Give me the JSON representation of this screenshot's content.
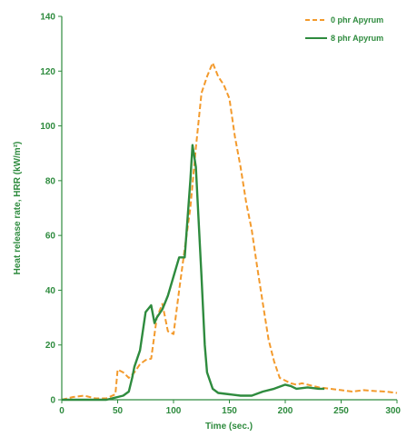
{
  "chart_data": {
    "type": "line",
    "xlabel": "Time (sec.)",
    "ylabel": "Heat release rate, HRR (kW/m²)",
    "xlim": [
      0,
      300
    ],
    "ylim": [
      0,
      140
    ],
    "xticks": [
      "0",
      "50",
      "100",
      "150",
      "200",
      "250",
      "300"
    ],
    "yticks": [
      "0",
      "20",
      "40",
      "60",
      "80",
      "100",
      "120",
      "140"
    ],
    "grid": false,
    "legend_position": "top-right",
    "axis_color": "#2e8b3e",
    "series": [
      {
        "name": "0 phr Apyrum",
        "color": "#f39a2c",
        "style": "dashed",
        "x": [
          0,
          10,
          20,
          30,
          40,
          48,
          50,
          55,
          60,
          65,
          70,
          75,
          80,
          85,
          90,
          95,
          100,
          105,
          110,
          115,
          120,
          125,
          130,
          135,
          140,
          145,
          150,
          155,
          160,
          165,
          170,
          175,
          180,
          185,
          190,
          195,
          200,
          205,
          210,
          215,
          220,
          225,
          230,
          240,
          250,
          260,
          270,
          280,
          290,
          300
        ],
        "y": [
          0,
          1,
          1.5,
          0.5,
          0.5,
          2,
          11,
          10,
          8,
          10,
          13,
          14.5,
          15,
          30,
          35,
          25,
          24,
          40,
          55,
          70,
          92,
          112,
          118,
          123,
          118,
          115,
          110,
          96,
          85,
          72,
          62,
          48,
          35,
          22,
          14,
          8,
          7,
          6,
          5.5,
          6,
          5.5,
          5,
          4.5,
          4,
          3.5,
          3,
          3.5,
          3.2,
          3,
          2.5
        ]
      },
      {
        "name": "8 phr Apyrum",
        "color": "#2e8b3e",
        "style": "solid",
        "x": [
          0,
          20,
          40,
          45,
          50,
          55,
          60,
          63,
          65,
          70,
          75,
          80,
          83,
          85,
          90,
          95,
          100,
          105,
          110,
          115,
          117,
          120,
          125,
          128,
          130,
          135,
          140,
          150,
          160,
          170,
          180,
          190,
          200,
          205,
          210,
          220,
          230,
          235
        ],
        "y": [
          0,
          0,
          0,
          0.5,
          1,
          1.5,
          3,
          8,
          12,
          18,
          32,
          34.5,
          28,
          30,
          33,
          38,
          45,
          52,
          52,
          80,
          93,
          85,
          45,
          20,
          10,
          4,
          2.5,
          2,
          1.5,
          1.5,
          3,
          4,
          5.5,
          5,
          4,
          4.5,
          4,
          4
        ]
      }
    ]
  }
}
